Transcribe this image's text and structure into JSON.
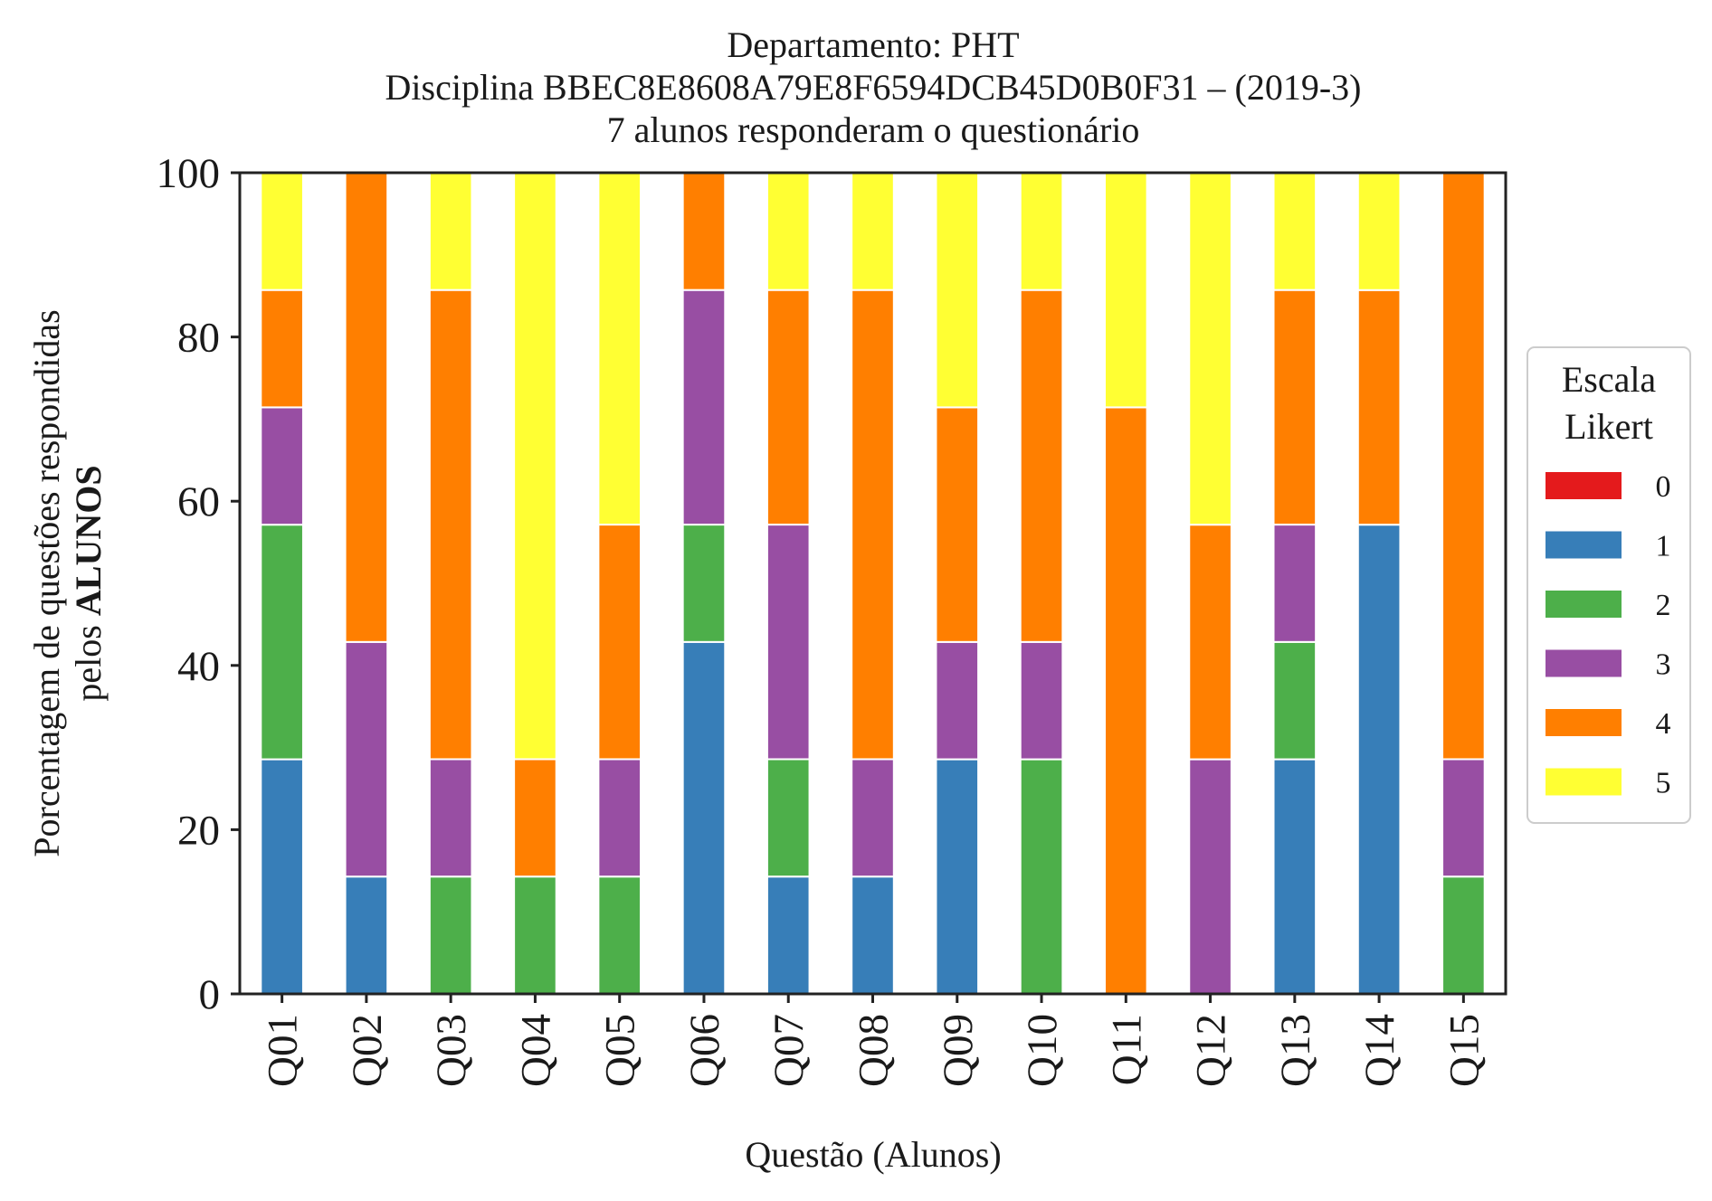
{
  "chart_data": {
    "type": "bar",
    "stacked": true,
    "title_lines": [
      "Departamento: PHT",
      "Disciplina BBEC8E8608A79E8F6594DCB45D0B0F31 – (2019-3)",
      "7 alunos responderam o questionário"
    ],
    "xlabel": "Questão (Alunos)",
    "ylabel_line1": "Porcentagem de questões respondidas",
    "ylabel_line2_prefix": "pelos",
    "ylabel_line2_bold": "ALUNOS",
    "ylim": [
      0,
      100
    ],
    "yticks": [
      "0",
      "20",
      "40",
      "60",
      "80",
      "100"
    ],
    "categories": [
      "Q01",
      "Q02",
      "Q03",
      "Q04",
      "Q05",
      "Q06",
      "Q07",
      "Q08",
      "Q09",
      "Q10",
      "Q11",
      "Q12",
      "Q13",
      "Q14",
      "Q15"
    ],
    "legend": {
      "title_lines": [
        "Escala",
        "Likert"
      ],
      "placement": "center-right, outside plot"
    },
    "grid": false,
    "series": [
      {
        "name": "0",
        "color": "#e41a1c",
        "values": [
          0,
          0,
          0,
          0,
          0,
          0,
          0,
          0,
          0,
          0,
          0,
          0,
          0,
          0,
          0
        ]
      },
      {
        "name": "1",
        "color": "#377eb8",
        "values": [
          28.57,
          14.29,
          0,
          0,
          0,
          42.86,
          14.29,
          14.29,
          28.57,
          0,
          0,
          0,
          28.57,
          57.14,
          0
        ]
      },
      {
        "name": "2",
        "color": "#4daf4a",
        "values": [
          28.57,
          0,
          14.29,
          14.29,
          14.29,
          14.29,
          14.29,
          0,
          0,
          28.57,
          0,
          0,
          14.29,
          0,
          14.29
        ]
      },
      {
        "name": "3",
        "color": "#984ea3",
        "values": [
          14.29,
          28.57,
          14.29,
          0,
          14.29,
          28.57,
          28.57,
          14.29,
          14.29,
          14.29,
          0,
          28.57,
          14.29,
          0,
          14.29
        ]
      },
      {
        "name": "4",
        "color": "#ff7f00",
        "values": [
          14.29,
          57.14,
          57.14,
          14.29,
          28.57,
          14.29,
          28.57,
          57.14,
          28.57,
          42.86,
          71.43,
          28.57,
          28.57,
          28.57,
          71.43
        ]
      },
      {
        "name": "5",
        "color": "#ffff33",
        "values": [
          14.29,
          0,
          14.29,
          71.43,
          42.86,
          0,
          14.29,
          14.29,
          28.57,
          14.29,
          28.57,
          42.86,
          14.29,
          14.29,
          0
        ]
      }
    ]
  }
}
